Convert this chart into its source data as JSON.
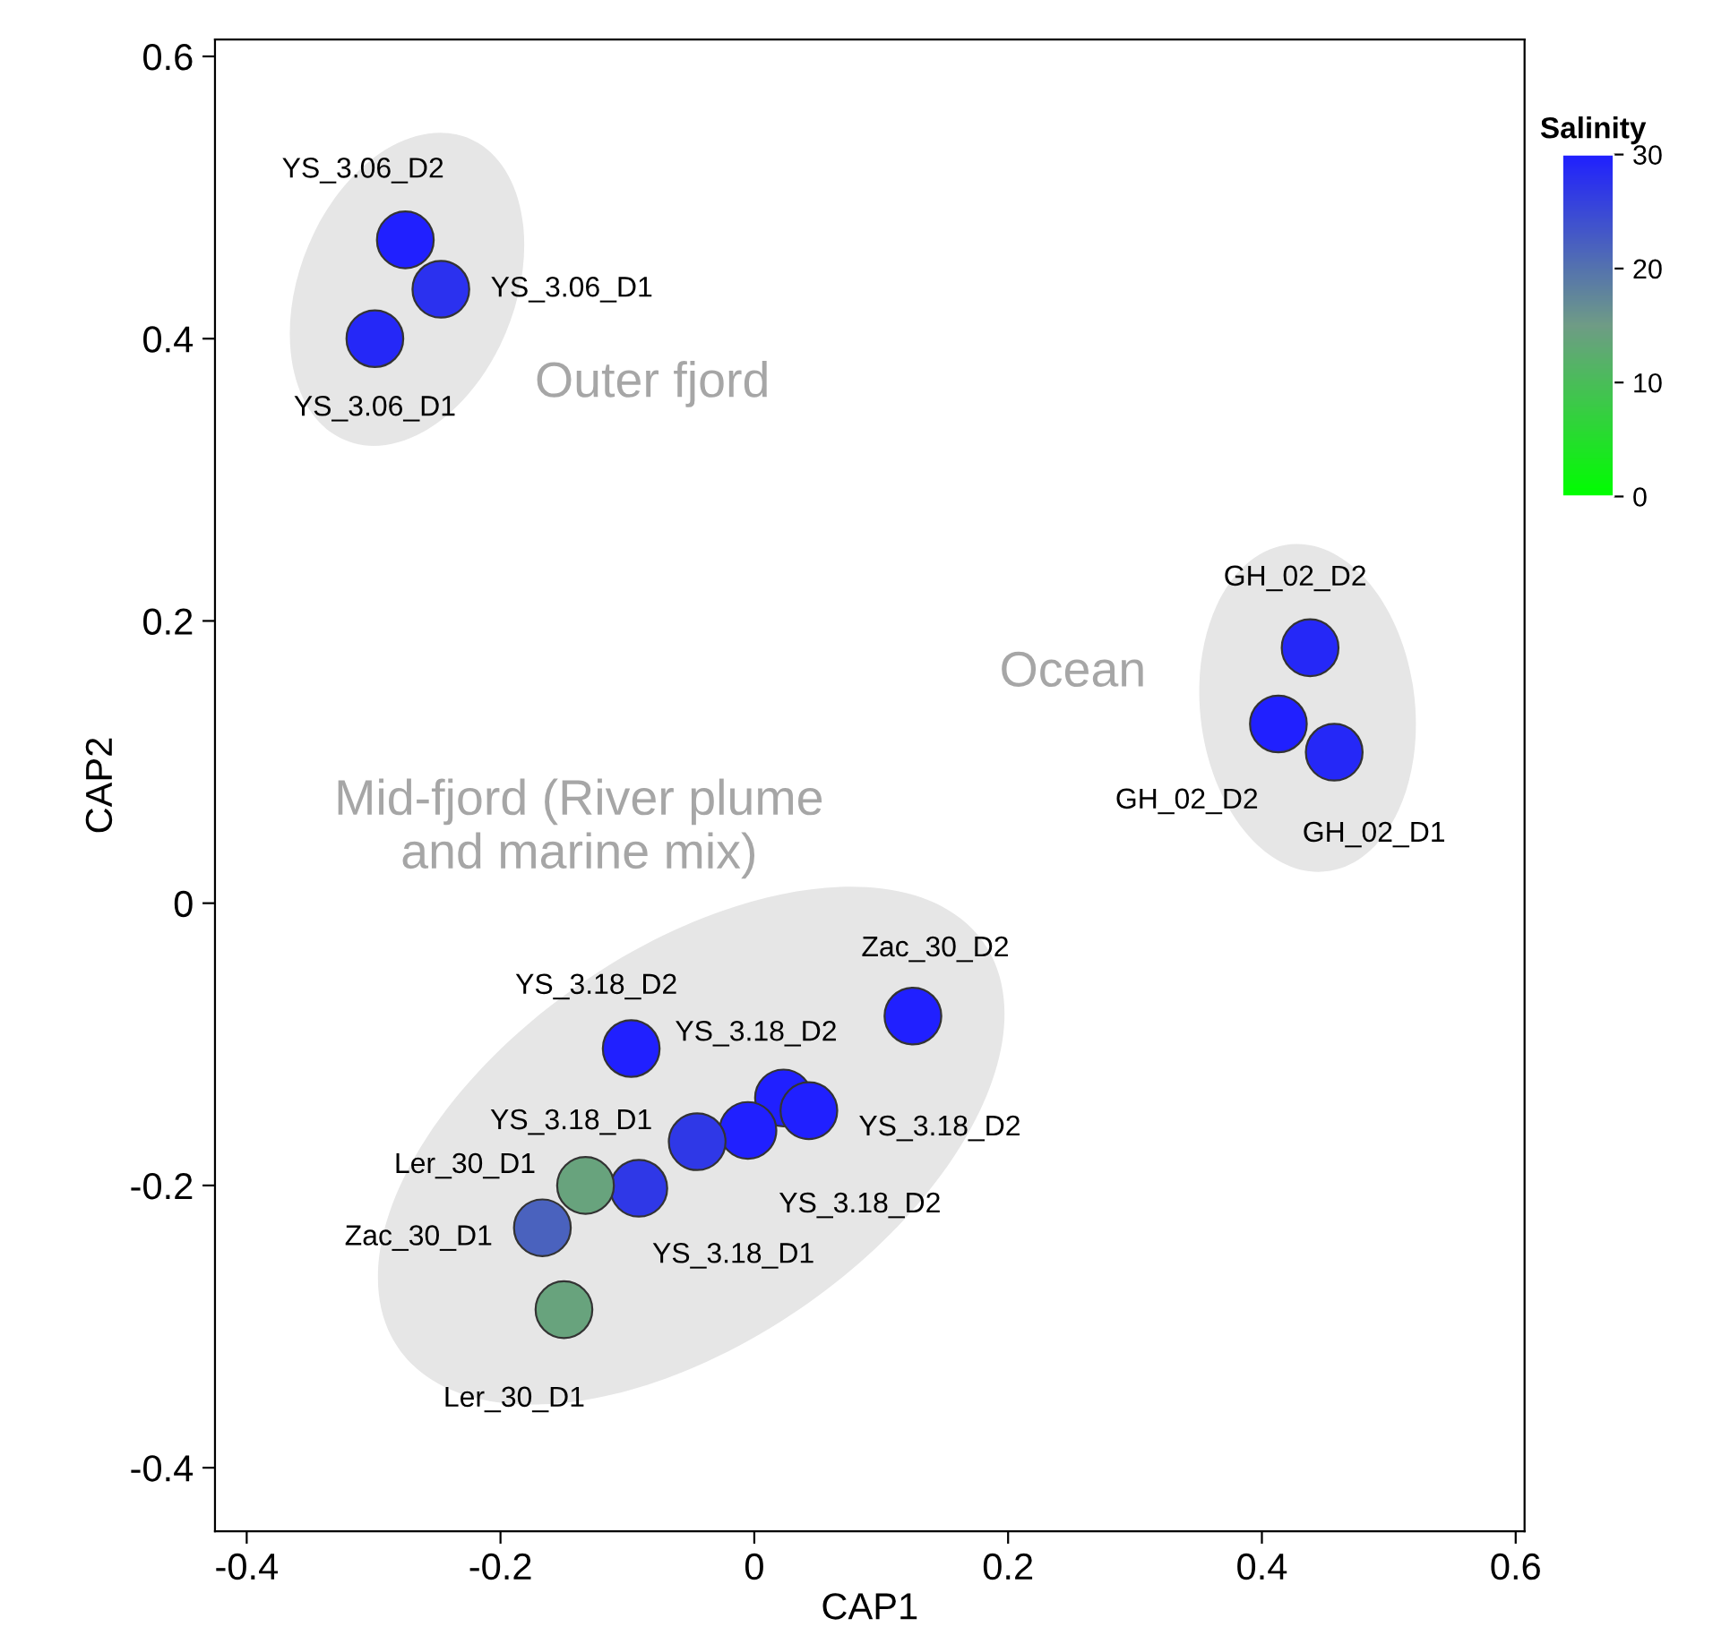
{
  "chart_data": {
    "type": "scatter",
    "xlabel": "CAP1",
    "ylabel": "CAP2",
    "clabel": "Salinity",
    "xlim": [
      -0.425,
      0.607
    ],
    "ylim": [
      -0.445,
      0.612
    ],
    "xticks": [
      {
        "value": -0.4,
        "label": "-0.4"
      },
      {
        "value": -0.2,
        "label": "-0.2"
      },
      0,
      0.2,
      0.4,
      0.6
    ],
    "yticks": [
      {
        "value": -0.4,
        "label": "-0.4"
      },
      {
        "value": -0.2,
        "label": "-0.2"
      },
      0,
      0.2,
      0.4,
      0.6
    ],
    "clim": [
      0,
      30
    ],
    "cticks": [
      0,
      10,
      20,
      30
    ],
    "grid": false,
    "legend": false,
    "marker": "circle",
    "x": [
      -0.275,
      -0.247,
      -0.299,
      0.438,
      0.413,
      0.457,
      0.125,
      -0.097,
      0.023,
      0.043,
      -0.005,
      -0.045,
      -0.091,
      -0.133,
      -0.167,
      -0.15
    ],
    "values": [
      0.47,
      0.435,
      0.4,
      0.181,
      0.127,
      0.107,
      -0.08,
      -0.103,
      -0.138,
      -0.147,
      -0.161,
      -0.169,
      -0.202,
      -0.2,
      -0.23,
      -0.288
    ],
    "cvalues": [
      30,
      28,
      29,
      29,
      30,
      29,
      30,
      30,
      30,
      30,
      30,
      27,
      27,
      14,
      22,
      14
    ],
    "annotations": [
      {
        "text": "YS_3.06_D2",
        "x": -0.275,
        "y": 0.47
      },
      {
        "text": "YS_3.06_D1",
        "x": -0.247,
        "y": 0.435
      },
      {
        "text": "YS_3.06_D1",
        "x": -0.299,
        "y": 0.4
      },
      {
        "text": "GH_02_D2",
        "x": 0.438,
        "y": 0.181
      },
      {
        "text": "GH_02_D2",
        "x": 0.413,
        "y": 0.127
      },
      {
        "text": "GH_02_D1",
        "x": 0.457,
        "y": 0.107
      },
      {
        "text": "Zac_30_D2",
        "x": 0.125,
        "y": -0.08
      },
      {
        "text": "YS_3.18_D2",
        "x": -0.097,
        "y": -0.103
      },
      {
        "text": "YS_3.18_D2",
        "x": 0.023,
        "y": -0.138
      },
      {
        "text": "YS_3.18_D2",
        "x": 0.043,
        "y": -0.147
      },
      {
        "text": "YS_3.18_D2",
        "x": -0.005,
        "y": -0.161
      },
      {
        "text": "YS_3.18_D1",
        "x": -0.045,
        "y": -0.169
      },
      {
        "text": "YS_3.18_D1",
        "x": -0.091,
        "y": -0.202
      },
      {
        "text": "Ler_30_D1",
        "x": -0.133,
        "y": -0.2
      },
      {
        "text": "Zac_30_D1",
        "x": -0.167,
        "y": -0.23
      },
      {
        "text": "Ler_30_D1",
        "x": -0.15,
        "y": -0.288
      },
      "Outer fjord",
      "Ocean",
      "Mid-fjord (River plume\nand marine mix)"
    ]
  }
}
